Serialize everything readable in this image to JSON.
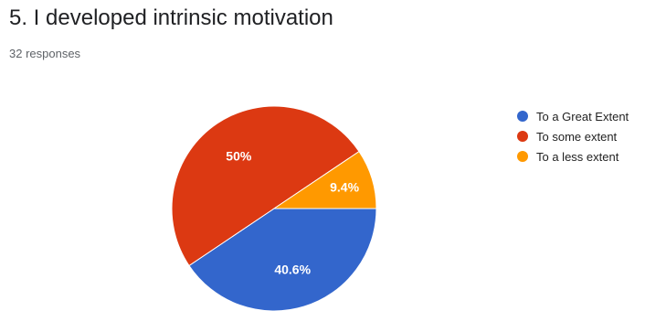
{
  "header": {
    "title": "5. I developed intrinsic motivation",
    "responses": "32 responses"
  },
  "chart_data": {
    "type": "pie",
    "title": "5. I developed intrinsic motivation",
    "subtitle": "32 responses",
    "legend_position": "right",
    "slices": [
      {
        "label": "To a Great Extent",
        "value": 40.6,
        "display": "40.6%",
        "color": "#3366cc"
      },
      {
        "label": "To some extent",
        "value": 50,
        "display": "50%",
        "color": "#dc3912"
      },
      {
        "label": "To a less extent",
        "value": 9.4,
        "display": "9.4%",
        "color": "#ff9900"
      }
    ]
  }
}
